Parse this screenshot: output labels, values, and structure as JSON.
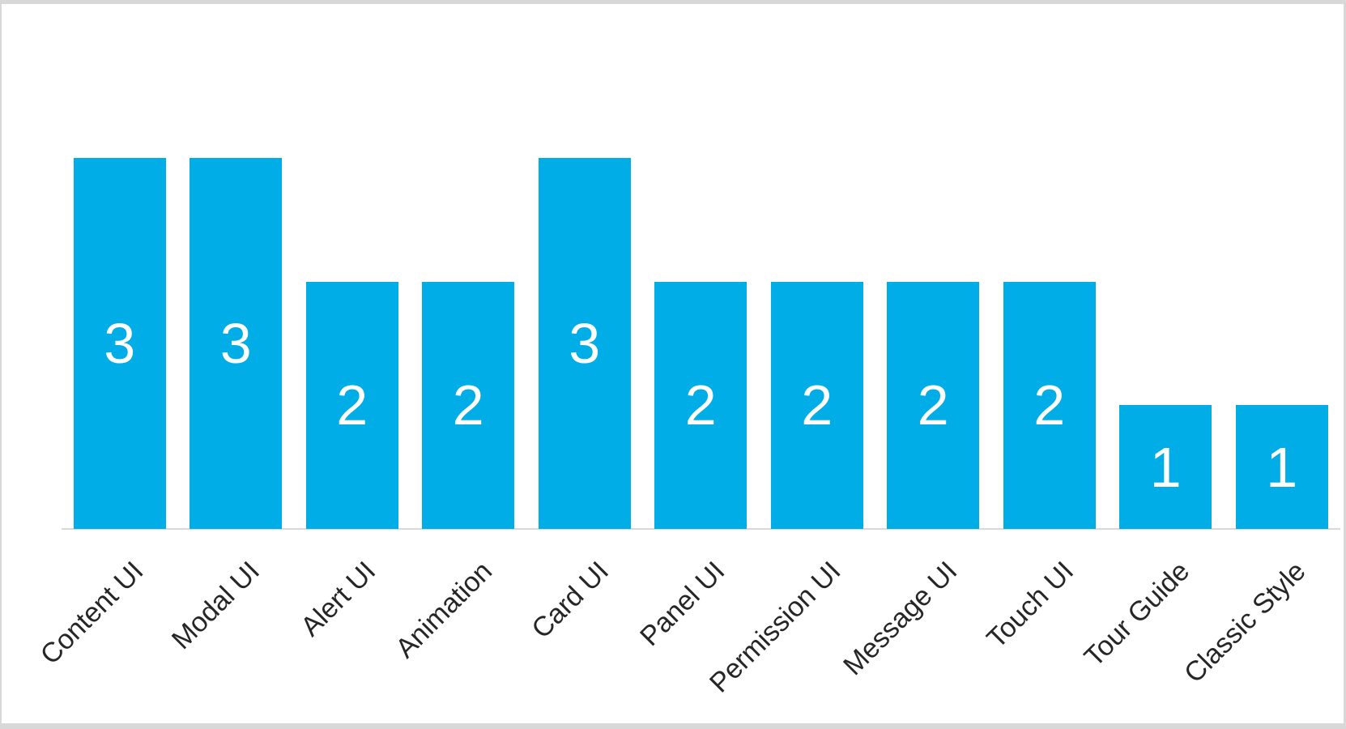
{
  "chart_data": {
    "type": "bar",
    "title": "",
    "xlabel": "",
    "ylabel": "",
    "categories": [
      "Content UI",
      "Modal UI",
      "Alert UI",
      "Animation",
      "Card UI",
      "Panel UI",
      "Permission UI",
      "Message UI",
      "Touch UI",
      "Tour Guide",
      "Classic Style"
    ],
    "values": [
      3,
      3,
      2,
      2,
      3,
      2,
      2,
      2,
      2,
      1,
      1
    ],
    "ylim": [
      0,
      3
    ],
    "grid": false,
    "legend": false,
    "data_labels_position": "inside-center",
    "category_label_rotation_deg": -45,
    "colors": {
      "bar": "#00ADE6",
      "value_label": "#FFFFFF",
      "category_label": "#262626",
      "axis_line": "#D9D9D9",
      "canvas_border": "#D8D8D8",
      "background": "#FFFFFF"
    }
  }
}
